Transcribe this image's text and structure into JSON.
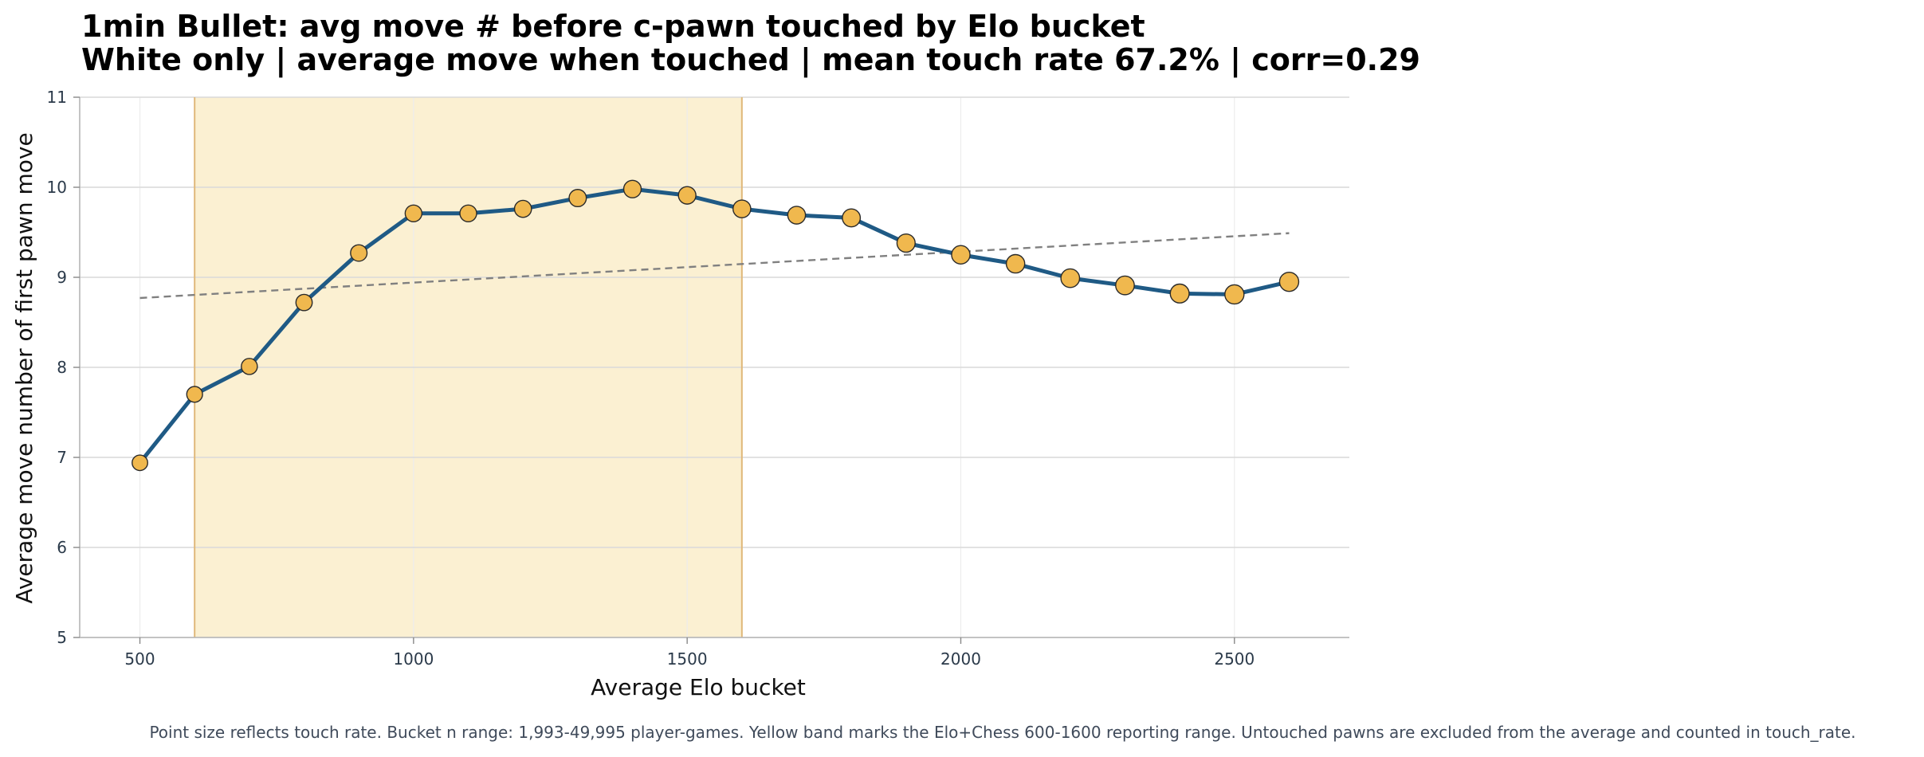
{
  "chart_data": {
    "type": "line",
    "title": "1min Bullet: avg move # before c-pawn touched by Elo bucket",
    "subtitle": "White only | average move when touched | mean touch rate 67.2% | corr=0.29",
    "xlabel": "Average Elo bucket",
    "ylabel": "Average move number of first pawn move",
    "xlim": [
      390,
      2710
    ],
    "ylim": [
      5,
      11
    ],
    "x_ticks": [
      500,
      1000,
      1500,
      2000,
      2500
    ],
    "y_ticks": [
      5,
      6,
      7,
      8,
      9,
      10,
      11
    ],
    "grid": true,
    "x": [
      500,
      600,
      700,
      800,
      900,
      1000,
      1100,
      1200,
      1300,
      1400,
      1500,
      1600,
      1700,
      1800,
      1900,
      2000,
      2100,
      2200,
      2300,
      2400,
      2500,
      2600
    ],
    "series": [
      {
        "values": [
          6.94,
          7.7,
          8.01,
          8.72,
          9.27,
          9.71,
          9.71,
          9.76,
          9.88,
          9.98,
          9.91,
          9.76,
          9.69,
          9.66,
          9.38,
          9.25,
          9.15,
          8.99,
          8.91,
          8.82,
          8.81,
          8.95
        ],
        "point_size_rel": [
          0.25,
          0.3,
          0.35,
          0.4,
          0.45,
          0.5,
          0.5,
          0.55,
          0.6,
          0.65,
          0.65,
          0.7,
          0.7,
          0.75,
          0.8,
          0.85,
          0.85,
          0.9,
          0.9,
          0.95,
          1.0,
          1.0
        ],
        "line_color": "#1f5a85",
        "marker_color": "#f0b84e"
      }
    ],
    "trend_line": {
      "x": [
        500,
        2600
      ],
      "y": [
        8.77,
        9.49
      ],
      "color": "#808080",
      "style": "dashed"
    },
    "band": {
      "x_range": [
        600,
        1600
      ],
      "fill": "#fbf0d2",
      "edge": "#e0b87a"
    },
    "footnote": "Point size reflects touch rate. Bucket n range: 1,993-49,995 player-games. Yellow band marks the Elo+Chess 600-1600 reporting range. Untouched pawns are excluded from the average and counted in touch_rate."
  }
}
